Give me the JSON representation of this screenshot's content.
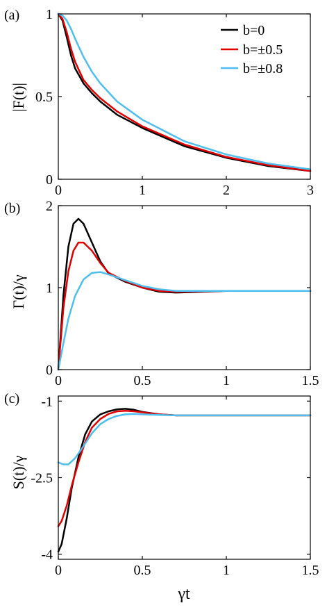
{
  "colors": {
    "b0": "#000000",
    "b05": "#e00000",
    "b08": "#4dbeee"
  },
  "legend": [
    "b=0",
    "b=±0.5",
    "b=±0.8"
  ],
  "x_axis_label": "γt",
  "chart_data": [
    {
      "type": "line",
      "panel_label": "(a)",
      "ylabel": "|F(t)|",
      "xlim": [
        0,
        3
      ],
      "ylim": [
        0,
        1
      ],
      "xticks": [
        "0",
        "1",
        "2",
        "3"
      ],
      "yticks": [
        "0",
        "0.5",
        "1"
      ],
      "legend_position": "top-right",
      "series": [
        {
          "name": "b=0",
          "x": [
            0,
            0.05,
            0.1,
            0.15,
            0.2,
            0.3,
            0.4,
            0.5,
            0.7,
            1,
            1.5,
            2,
            2.5,
            3
          ],
          "y": [
            1,
            0.96,
            0.86,
            0.75,
            0.67,
            0.58,
            0.52,
            0.47,
            0.39,
            0.31,
            0.2,
            0.13,
            0.08,
            0.05
          ]
        },
        {
          "name": "b=±0.5",
          "x": [
            0,
            0.05,
            0.1,
            0.15,
            0.2,
            0.3,
            0.4,
            0.5,
            0.7,
            1,
            1.5,
            2,
            2.5,
            3
          ],
          "y": [
            1,
            0.97,
            0.89,
            0.79,
            0.71,
            0.6,
            0.54,
            0.49,
            0.41,
            0.32,
            0.21,
            0.135,
            0.085,
            0.05
          ]
        },
        {
          "name": "b=±0.8",
          "x": [
            0,
            0.05,
            0.1,
            0.15,
            0.2,
            0.3,
            0.4,
            0.5,
            0.7,
            1,
            1.5,
            2,
            2.5,
            3
          ],
          "y": [
            1,
            0.99,
            0.96,
            0.91,
            0.85,
            0.74,
            0.65,
            0.58,
            0.47,
            0.36,
            0.23,
            0.15,
            0.095,
            0.06
          ]
        }
      ]
    },
    {
      "type": "line",
      "panel_label": "(b)",
      "ylabel": "Γ(t)/γ",
      "xlim": [
        0,
        1.5
      ],
      "ylim": [
        0,
        2
      ],
      "xticks": [
        "0",
        "0.5",
        "1",
        "1.5"
      ],
      "yticks": [
        "0",
        "1",
        "2"
      ],
      "series": [
        {
          "name": "b=0",
          "x": [
            0,
            0.03,
            0.06,
            0.09,
            0.12,
            0.15,
            0.2,
            0.25,
            0.3,
            0.4,
            0.5,
            0.6,
            0.7,
            1,
            1.5
          ],
          "y": [
            0,
            0.9,
            1.5,
            1.78,
            1.84,
            1.78,
            1.55,
            1.32,
            1.17,
            1.07,
            1.0,
            0.95,
            0.94,
            0.96,
            0.96
          ]
        },
        {
          "name": "b=±0.5",
          "x": [
            0,
            0.03,
            0.06,
            0.09,
            0.12,
            0.15,
            0.2,
            0.25,
            0.3,
            0.4,
            0.5,
            0.6,
            0.7,
            1,
            1.5
          ],
          "y": [
            0,
            0.75,
            1.2,
            1.45,
            1.55,
            1.55,
            1.45,
            1.3,
            1.18,
            1.08,
            1.0,
            0.96,
            0.95,
            0.96,
            0.96
          ]
        },
        {
          "name": "b=±0.8",
          "x": [
            0,
            0.03,
            0.06,
            0.1,
            0.15,
            0.2,
            0.25,
            0.3,
            0.4,
            0.5,
            0.6,
            0.7,
            1,
            1.5
          ],
          "y": [
            0,
            0.32,
            0.62,
            0.9,
            1.1,
            1.18,
            1.19,
            1.16,
            1.09,
            1.02,
            0.98,
            0.96,
            0.96,
            0.96
          ]
        }
      ]
    },
    {
      "type": "line",
      "panel_label": "(c)",
      "ylabel": "S(t)/γ",
      "xlim": [
        0,
        1.5
      ],
      "ylim": [
        -4.1,
        -0.9
      ],
      "xticks": [
        "0",
        "0.5",
        "1",
        "1.5"
      ],
      "yticks": [
        "-4",
        "-2.5",
        "-1"
      ],
      "series": [
        {
          "name": "b=0",
          "x": [
            0,
            0.02,
            0.05,
            0.08,
            0.12,
            0.16,
            0.2,
            0.25,
            0.3,
            0.35,
            0.4,
            0.45,
            0.5,
            0.6,
            0.7,
            1,
            1.5
          ],
          "y": [
            -3.95,
            -3.8,
            -3.3,
            -2.7,
            -2.1,
            -1.65,
            -1.4,
            -1.26,
            -1.2,
            -1.16,
            -1.15,
            -1.17,
            -1.21,
            -1.26,
            -1.28,
            -1.28,
            -1.28
          ]
        },
        {
          "name": "b=±0.5",
          "x": [
            0,
            0.02,
            0.05,
            0.08,
            0.12,
            0.16,
            0.2,
            0.25,
            0.3,
            0.35,
            0.4,
            0.45,
            0.5,
            0.6,
            0.7,
            1,
            1.5
          ],
          "y": [
            -3.45,
            -3.35,
            -3.05,
            -2.65,
            -2.2,
            -1.8,
            -1.52,
            -1.35,
            -1.25,
            -1.2,
            -1.19,
            -1.2,
            -1.22,
            -1.26,
            -1.28,
            -1.28,
            -1.28
          ]
        },
        {
          "name": "b=±0.8",
          "x": [
            0,
            0.03,
            0.06,
            0.1,
            0.15,
            0.2,
            0.25,
            0.3,
            0.35,
            0.4,
            0.45,
            0.5,
            0.6,
            0.7,
            1,
            1.5
          ],
          "y": [
            -2.2,
            -2.24,
            -2.24,
            -2.12,
            -1.88,
            -1.63,
            -1.45,
            -1.35,
            -1.29,
            -1.26,
            -1.25,
            -1.26,
            -1.27,
            -1.28,
            -1.28,
            -1.28
          ]
        }
      ]
    }
  ]
}
